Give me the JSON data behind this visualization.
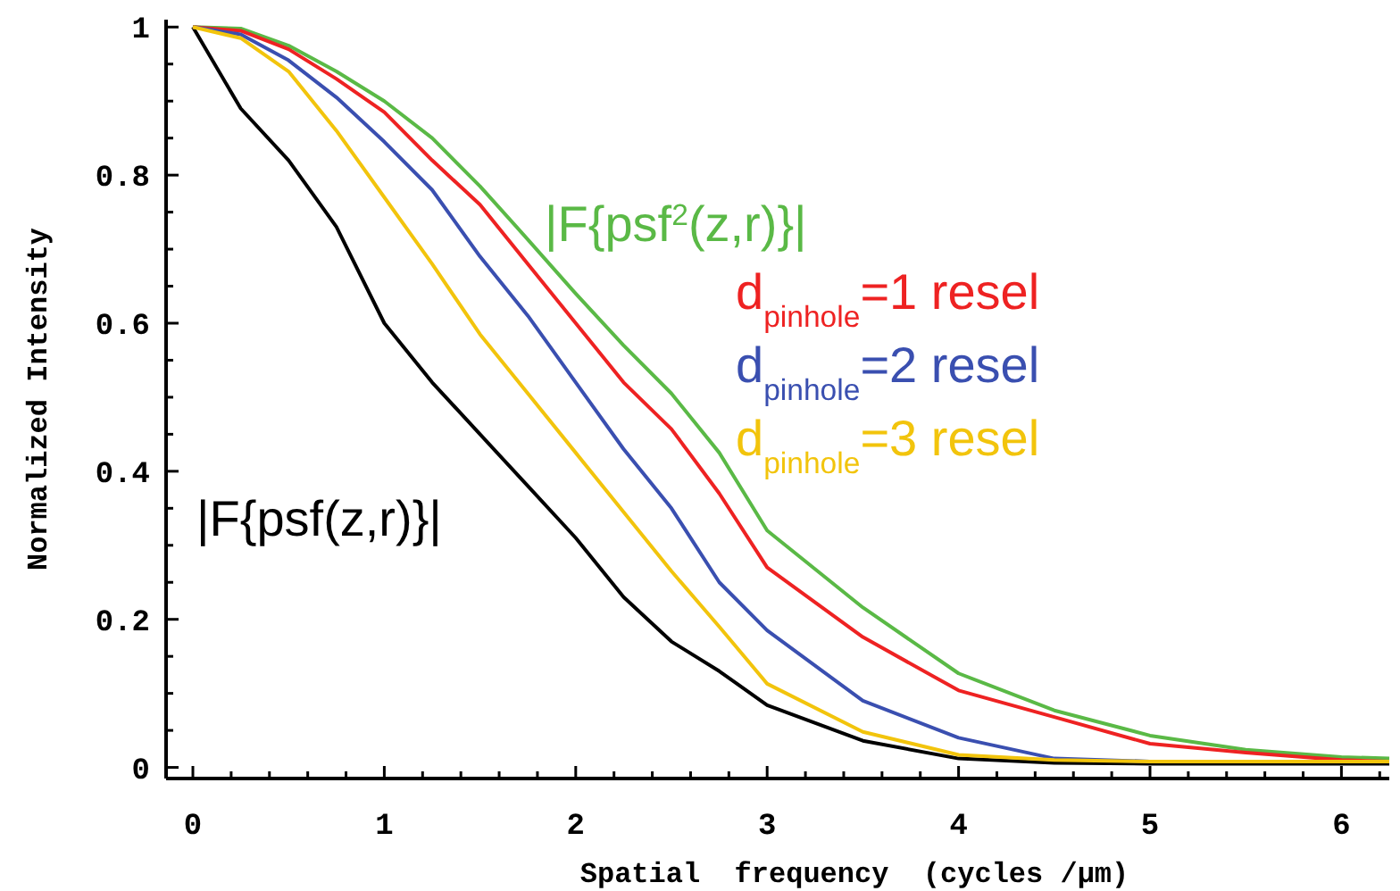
{
  "chart_data": {
    "type": "line",
    "xlabel": "Spatial  frequency  (cycles /μm)",
    "ylabel": "Normalized Intensity",
    "x": [
      0,
      0.25,
      0.5,
      0.75,
      1,
      1.25,
      1.5,
      1.75,
      2,
      2.25,
      2.5,
      2.75,
      3,
      3.5,
      4,
      4.5,
      5,
      5.5,
      6,
      6.25
    ],
    "series": [
      {
        "name": "|F{psf(z,r)}|",
        "color": "#000000",
        "values": [
          1,
          0.89,
          0.82,
          0.73,
          0.6,
          0.52,
          0.45,
          0.38,
          0.31,
          0.23,
          0.17,
          0.13,
          0.084,
          0.036,
          0.012,
          0.006,
          0.005,
          0.005,
          0.005,
          0.005
        ]
      },
      {
        "name": "|F{psf$^{2}$(z,r)}|",
        "color": "#5ab946",
        "values": [
          1,
          0.998,
          0.975,
          0.94,
          0.9,
          0.85,
          0.785,
          0.713,
          0.64,
          0.57,
          0.505,
          0.425,
          0.32,
          0.216,
          0.127,
          0.077,
          0.043,
          0.024,
          0.014,
          0.012
        ]
      },
      {
        "name": "d$_{pinhole}$=1 resel",
        "color": "#ee2222",
        "values": [
          1,
          0.995,
          0.97,
          0.93,
          0.885,
          0.82,
          0.76,
          0.68,
          0.6,
          0.52,
          0.457,
          0.37,
          0.27,
          0.176,
          0.104,
          0.068,
          0.032,
          0.02,
          0.01,
          0.008
        ]
      },
      {
        "name": "d$_{pinhole}$=2 resel",
        "color": "#3a4fb0",
        "values": [
          1,
          0.99,
          0.955,
          0.905,
          0.845,
          0.78,
          0.69,
          0.61,
          0.52,
          0.43,
          0.35,
          0.25,
          0.185,
          0.09,
          0.04,
          0.012,
          0.008,
          0.008,
          null,
          null
        ]
      },
      {
        "name": "d$_{pinhole}$=3 resel",
        "color": "#f2c40c",
        "values": [
          1,
          0.985,
          0.94,
          0.86,
          0.77,
          0.68,
          0.585,
          0.505,
          0.425,
          0.345,
          0.265,
          0.19,
          0.113,
          0.048,
          0.017,
          0.01,
          0.008,
          0.008,
          0.008,
          0.008
        ]
      }
    ],
    "xlim": [
      -0.14,
      6.25
    ],
    "ylim": [
      -0.015,
      1.01
    ],
    "xticks": [
      0,
      {
        "value": 0.2,
        "label": null
      },
      {
        "value": 0.4,
        "label": null
      },
      {
        "value": 0.6,
        "label": null
      },
      {
        "value": 0.8,
        "label": null
      },
      1,
      {
        "value": 1.2,
        "label": null
      },
      {
        "value": 1.4,
        "label": null
      },
      {
        "value": 1.6,
        "label": null
      },
      {
        "value": 1.8,
        "label": null
      },
      2,
      {
        "value": 2.2,
        "label": null
      },
      {
        "value": 2.4,
        "label": null
      },
      {
        "value": 2.6,
        "label": null
      },
      {
        "value": 2.8,
        "label": null
      },
      3,
      {
        "value": 3.2,
        "label": null
      },
      {
        "value": 3.4,
        "label": null
      },
      {
        "value": 3.6,
        "label": null
      },
      {
        "value": 3.8,
        "label": null
      },
      4,
      {
        "value": 4.2,
        "label": null
      },
      {
        "value": 4.4,
        "label": null
      },
      {
        "value": 4.6,
        "label": null
      },
      {
        "value": 4.8,
        "label": null
      },
      5,
      {
        "value": 5.2,
        "label": null
      },
      {
        "value": 5.4,
        "label": null
      },
      {
        "value": 5.6,
        "label": null
      },
      {
        "value": 5.8,
        "label": null
      },
      6,
      {
        "value": 6.2,
        "label": null
      }
    ],
    "yticks": [
      0,
      {
        "value": 0.05,
        "label": null
      },
      {
        "value": 0.1,
        "label": null
      },
      {
        "value": 0.15,
        "label": null
      },
      0.2,
      {
        "value": 0.25,
        "label": null
      },
      {
        "value": 0.3,
        "label": null
      },
      {
        "value": 0.35,
        "label": null
      },
      0.4,
      {
        "value": 0.45,
        "label": null
      },
      {
        "value": 0.5,
        "label": null
      },
      {
        "value": 0.55,
        "label": null
      },
      0.6,
      {
        "value": 0.65,
        "label": null
      },
      {
        "value": 0.7,
        "label": null
      },
      {
        "value": 0.75,
        "label": null
      },
      0.8,
      {
        "value": 0.85,
        "label": null
      },
      {
        "value": 0.9,
        "label": null
      },
      {
        "value": 0.95,
        "label": null
      },
      1
    ],
    "grid": false,
    "marker": "none",
    "line_style": "solid"
  }
}
